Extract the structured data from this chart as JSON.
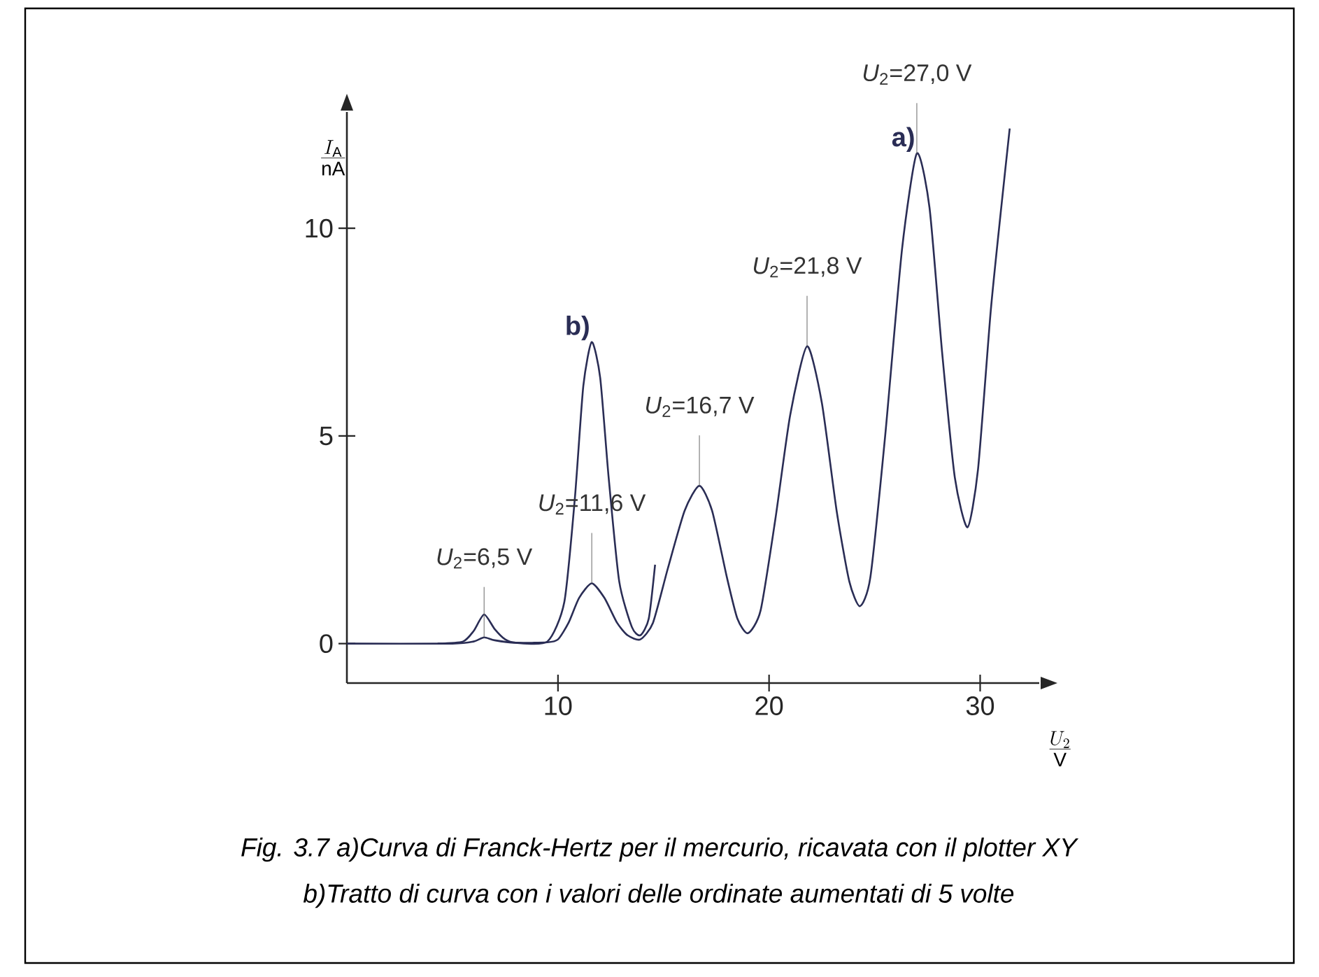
{
  "chart_data": {
    "type": "line",
    "xlabel": "\\frac{U_{2}}{\\mathrm{V}}",
    "ylabel": "\\frac{I_{\\mathrm{A}}}{\\mathrm{nA}}",
    "xlim": [
      0,
      32.8
    ],
    "ylim": [
      -0.95,
      12.8
    ],
    "xticks": [
      10,
      20,
      30
    ],
    "yticks": [
      0,
      5,
      10
    ],
    "series": [
      {
        "name": "a)",
        "color": "#2a2d55",
        "x": [
          0,
          5,
          6,
          6.5,
          7,
          8,
          9.5,
          10,
          10.5,
          11,
          11.6,
          12.2,
          12.8,
          13.3,
          13.9,
          14.5,
          15.2,
          16,
          16.7,
          17.3,
          18,
          18.5,
          19,
          19.6,
          20.3,
          21,
          21.8,
          22.5,
          23.2,
          23.8,
          24.3,
          24.8,
          25.5,
          26.3,
          27.0,
          27.6,
          28.2,
          28.8,
          29.4,
          29.9,
          30.5,
          31,
          31.4
        ],
        "values": [
          0,
          0,
          0.05,
          0.15,
          0.08,
          0.02,
          0.03,
          0.1,
          0.5,
          1.1,
          1.45,
          1.1,
          0.5,
          0.2,
          0.1,
          0.5,
          1.8,
          3.2,
          3.8,
          3.2,
          1.6,
          0.6,
          0.25,
          0.8,
          3,
          5.5,
          7.16,
          5.8,
          3.2,
          1.5,
          0.9,
          1.6,
          5,
          9.5,
          11.8,
          10.5,
          7,
          4,
          2.8,
          4.2,
          8,
          10.5,
          12.4
        ]
      },
      {
        "name": "b)",
        "color": "#2a2d55",
        "x": [
          4.3,
          5.5,
          6.0,
          6.5,
          7.0,
          7.5,
          8,
          9.5,
          10.3,
          10.8,
          11.2,
          11.6,
          12.0,
          12.4,
          12.9,
          13.5,
          13.9,
          14.3,
          14.6
        ],
        "values": [
          0,
          0.05,
          0.3,
          0.7,
          0.35,
          0.1,
          0.02,
          0.05,
          1.0,
          3.5,
          6.2,
          7.26,
          6.4,
          4,
          1.5,
          0.4,
          0.2,
          0.6,
          1.9
        ]
      }
    ],
    "annotations": [
      {
        "text": "*U*$_{2}$=6,5 V",
        "x": 6.5,
        "y": 0.15
      },
      {
        "text": "*U*$_{2}$=11,6 V",
        "x": 11.6,
        "y": 1.45
      },
      {
        "text": "*U*$_{2}$=16,7 V",
        "x": 16.7,
        "y": 3.8
      },
      {
        "text": "*U*$_{2}$=21,8 V",
        "x": 21.8,
        "y": 7.16
      },
      {
        "text": "*U*$_{2}$=27,0 V",
        "x": 27.0,
        "y": 11.8
      },
      "Fig. 3.7 a)Curva di Franck-Hertz per il mercurio, ricavata con il plotter XY",
      "b)Tratto di curva con i valori delle ordinate aumentati di 5 volte"
    ]
  }
}
